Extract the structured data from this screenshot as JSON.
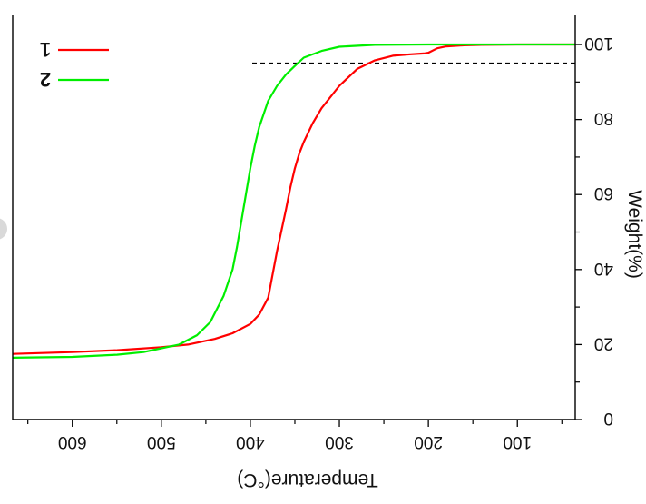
{
  "chart_data": {
    "type": "line",
    "title": "",
    "xlabel": "Temperature(°C)",
    "ylabel": "Weight(%)",
    "mirrored": true,
    "xlim": [
      667,
      35
    ],
    "ylim": [
      0,
      108
    ],
    "xticks": [
      600,
      500,
      400,
      300,
      200,
      100
    ],
    "yticks": [
      0,
      20,
      40,
      60,
      80,
      100
    ],
    "grid": false,
    "legend_position": "top-right",
    "reference_line": {
      "y": 95,
      "x_from": 35,
      "x_to": 400,
      "style": "dashed",
      "color": "#000000"
    },
    "series": [
      {
        "name": "1",
        "color": "#ff0000",
        "x": [
          667,
          600,
          550,
          500,
          470,
          440,
          420,
          400,
          390,
          380,
          370,
          365,
          360,
          355,
          350,
          345,
          340,
          330,
          320,
          300,
          280,
          260,
          240,
          220,
          205,
          200,
          190,
          180,
          160,
          140,
          100,
          35
        ],
        "y": [
          17.5,
          18,
          18.5,
          19.3,
          20,
          21.5,
          23,
          25.5,
          28,
          32.5,
          45,
          50.5,
          56,
          62,
          67,
          71,
          74,
          79,
          83,
          89,
          93.5,
          95.8,
          97,
          97.4,
          97.6,
          97.8,
          99,
          99.5,
          99.8,
          99.9,
          100,
          100
        ]
      },
      {
        "name": "2",
        "color": "#00ee00",
        "x": [
          667,
          600,
          550,
          520,
          500,
          480,
          460,
          445,
          430,
          420,
          415,
          410,
          405,
          400,
          395,
          390,
          380,
          370,
          360,
          350,
          340,
          320,
          300,
          260,
          200,
          100,
          35
        ],
        "y": [
          16.5,
          16.7,
          17.3,
          18,
          19,
          20,
          22.5,
          26,
          33,
          40,
          46,
          53,
          60,
          67,
          73,
          78,
          85,
          89,
          92,
          94.3,
          96.5,
          98.3,
          99.4,
          99.9,
          100,
          100,
          100
        ]
      }
    ]
  }
}
